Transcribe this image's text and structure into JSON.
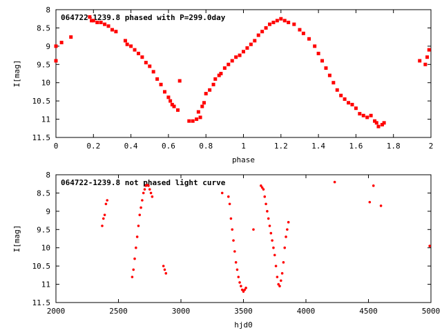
{
  "chart_data": [
    {
      "type": "scatter",
      "title": "064722-1239.8 phased with P=299.0day",
      "xlabel": "phase",
      "ylabel": "I[mag]",
      "xlim": [
        0,
        2
      ],
      "ylim": [
        8,
        11.5
      ],
      "y_inverted": true,
      "grid": false,
      "xticks": [
        "0",
        "0.2",
        "0.4",
        "0.6",
        "0.8",
        "1",
        "1.2",
        "1.4",
        "1.6",
        "1.8",
        "2"
      ],
      "yticks": [
        "8",
        "8.5",
        "9",
        "9.5",
        "10",
        "10.5",
        "11",
        "11.5"
      ],
      "marker_color": "#ff0000",
      "series": [
        {
          "x": [
            0.0,
            0.0,
            0.03,
            0.08,
            0.18,
            0.19,
            0.2,
            0.22,
            0.24,
            0.26,
            0.28,
            0.3,
            0.32,
            0.37,
            0.38,
            0.4,
            0.42,
            0.44,
            0.46,
            0.48,
            0.5,
            0.52,
            0.54,
            0.56,
            0.58,
            0.6,
            0.61,
            0.62,
            0.63,
            0.65,
            0.66,
            0.71,
            0.73,
            0.75,
            0.76,
            0.77,
            0.78,
            0.79,
            0.8,
            0.82,
            0.84,
            0.85,
            0.87,
            0.88,
            0.9,
            0.92,
            0.94,
            0.96,
            0.98,
            1.0,
            1.02,
            1.04,
            1.06,
            1.08,
            1.1,
            1.12,
            1.14,
            1.16,
            1.18,
            1.2,
            1.22,
            1.24,
            1.27,
            1.3,
            1.32,
            1.35,
            1.38,
            1.4,
            1.42,
            1.44,
            1.46,
            1.48,
            1.5,
            1.52,
            1.54,
            1.56,
            1.58,
            1.6,
            1.62,
            1.64,
            1.66,
            1.68,
            1.7,
            1.71,
            1.72,
            1.74,
            1.75,
            1.94,
            1.97,
            1.98,
            1.99
          ],
          "y": [
            9.4,
            9.0,
            8.9,
            8.75,
            8.2,
            8.3,
            8.3,
            8.35,
            8.35,
            8.4,
            8.45,
            8.55,
            8.6,
            8.85,
            8.95,
            9.0,
            9.1,
            9.2,
            9.3,
            9.45,
            9.55,
            9.7,
            9.9,
            10.05,
            10.25,
            10.4,
            10.5,
            10.6,
            10.65,
            10.75,
            9.95,
            11.05,
            11.05,
            11.0,
            10.8,
            10.95,
            10.65,
            10.55,
            10.3,
            10.2,
            10.05,
            9.9,
            9.8,
            9.75,
            9.6,
            9.5,
            9.4,
            9.3,
            9.25,
            9.15,
            9.05,
            8.95,
            8.85,
            8.7,
            8.6,
            8.5,
            8.4,
            8.35,
            8.3,
            8.25,
            8.3,
            8.35,
            8.4,
            8.55,
            8.65,
            8.8,
            9.0,
            9.2,
            9.4,
            9.6,
            9.8,
            10.0,
            10.2,
            10.35,
            10.45,
            10.55,
            10.6,
            10.7,
            10.85,
            10.9,
            10.95,
            10.9,
            11.05,
            11.1,
            11.2,
            11.15,
            11.1,
            9.4,
            9.5,
            9.3,
            9.1
          ]
        }
      ]
    },
    {
      "type": "scatter",
      "title": "064722-1239.8 not phased light curve",
      "xlabel": "hjd0",
      "ylabel": "I[mag]",
      "xlim": [
        2000,
        5000
      ],
      "ylim": [
        8,
        11.5
      ],
      "y_inverted": true,
      "grid": false,
      "xticks": [
        "2000",
        "2500",
        "3000",
        "3500",
        "4000",
        "4500",
        "5000"
      ],
      "yticks": [
        "8",
        "8.5",
        "9",
        "9.5",
        "10",
        "10.5",
        "11",
        "11.5"
      ],
      "marker_color": "#ff0000",
      "series": [
        {
          "x": [
            2370,
            2380,
            2390,
            2400,
            2410,
            2610,
            2620,
            2630,
            2640,
            2650,
            2660,
            2670,
            2680,
            2690,
            2700,
            2710,
            2720,
            2730,
            2740,
            2750,
            2760,
            2770,
            2860,
            2870,
            2880,
            3330,
            3380,
            3390,
            3400,
            3410,
            3420,
            3430,
            3440,
            3450,
            3460,
            3470,
            3480,
            3490,
            3500,
            3510,
            3520,
            3580,
            3640,
            3650,
            3660,
            3670,
            3680,
            3690,
            3700,
            3710,
            3720,
            3730,
            3740,
            3750,
            3760,
            3770,
            3780,
            3790,
            3800,
            3810,
            3820,
            3830,
            3840,
            3850,
            3860,
            4230,
            4510,
            4540,
            4600,
            4990
          ],
          "y": [
            9.4,
            9.2,
            9.1,
            8.8,
            8.7,
            10.8,
            10.6,
            10.3,
            10.0,
            9.7,
            9.4,
            9.1,
            8.9,
            8.7,
            8.5,
            8.4,
            8.3,
            8.28,
            8.3,
            8.4,
            8.5,
            8.6,
            10.5,
            10.6,
            10.7,
            8.5,
            8.6,
            8.8,
            9.2,
            9.5,
            9.8,
            10.1,
            10.4,
            10.6,
            10.8,
            10.95,
            11.05,
            11.15,
            11.2,
            11.15,
            11.1,
            9.5,
            8.3,
            8.35,
            8.4,
            8.6,
            8.8,
            9.0,
            9.2,
            9.4,
            9.6,
            9.8,
            10.0,
            10.2,
            10.5,
            10.8,
            11.0,
            11.05,
            10.9,
            10.7,
            10.4,
            10.0,
            9.7,
            9.5,
            9.3,
            8.2,
            8.75,
            8.3,
            8.85,
            9.95
          ]
        }
      ]
    }
  ]
}
